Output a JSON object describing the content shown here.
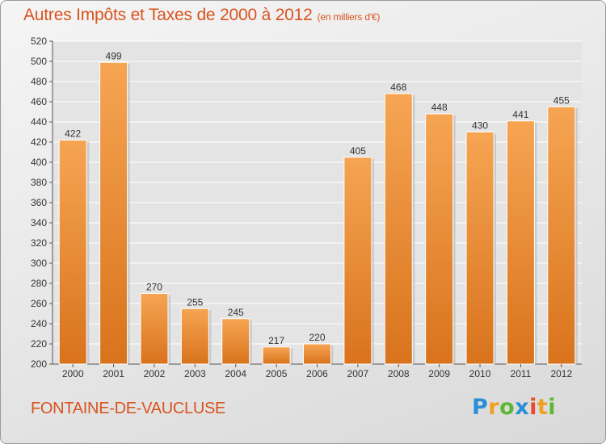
{
  "title": "Autres Impôts et Taxes de 2000 à 2012",
  "unit": "(en milliers d'€)",
  "commune": "FONTAINE-DE-VAUCLUSE",
  "logo": {
    "text": "Proxiti",
    "letters": [
      "P",
      "r",
      "o",
      "x",
      "i",
      "t",
      "i"
    ]
  },
  "colors": {
    "bar_light": "#f6a553",
    "bar_dark": "#d9731c",
    "title": "#d9531e"
  },
  "chart_data": {
    "type": "bar",
    "title": "Autres Impôts et Taxes de 2000 à 2012",
    "xlabel": "",
    "ylabel": "",
    "categories": [
      "2000",
      "2001",
      "2002",
      "2003",
      "2004",
      "2005",
      "2006",
      "2007",
      "2008",
      "2009",
      "2010",
      "2011",
      "2012"
    ],
    "values": [
      422,
      499,
      270,
      255,
      245,
      217,
      220,
      405,
      468,
      448,
      430,
      441,
      455
    ],
    "ylim": [
      200,
      520
    ],
    "yticks": [
      200,
      220,
      240,
      260,
      280,
      300,
      320,
      340,
      360,
      380,
      400,
      420,
      440,
      460,
      480,
      500,
      520
    ],
    "grid": true,
    "legend": "none"
  }
}
